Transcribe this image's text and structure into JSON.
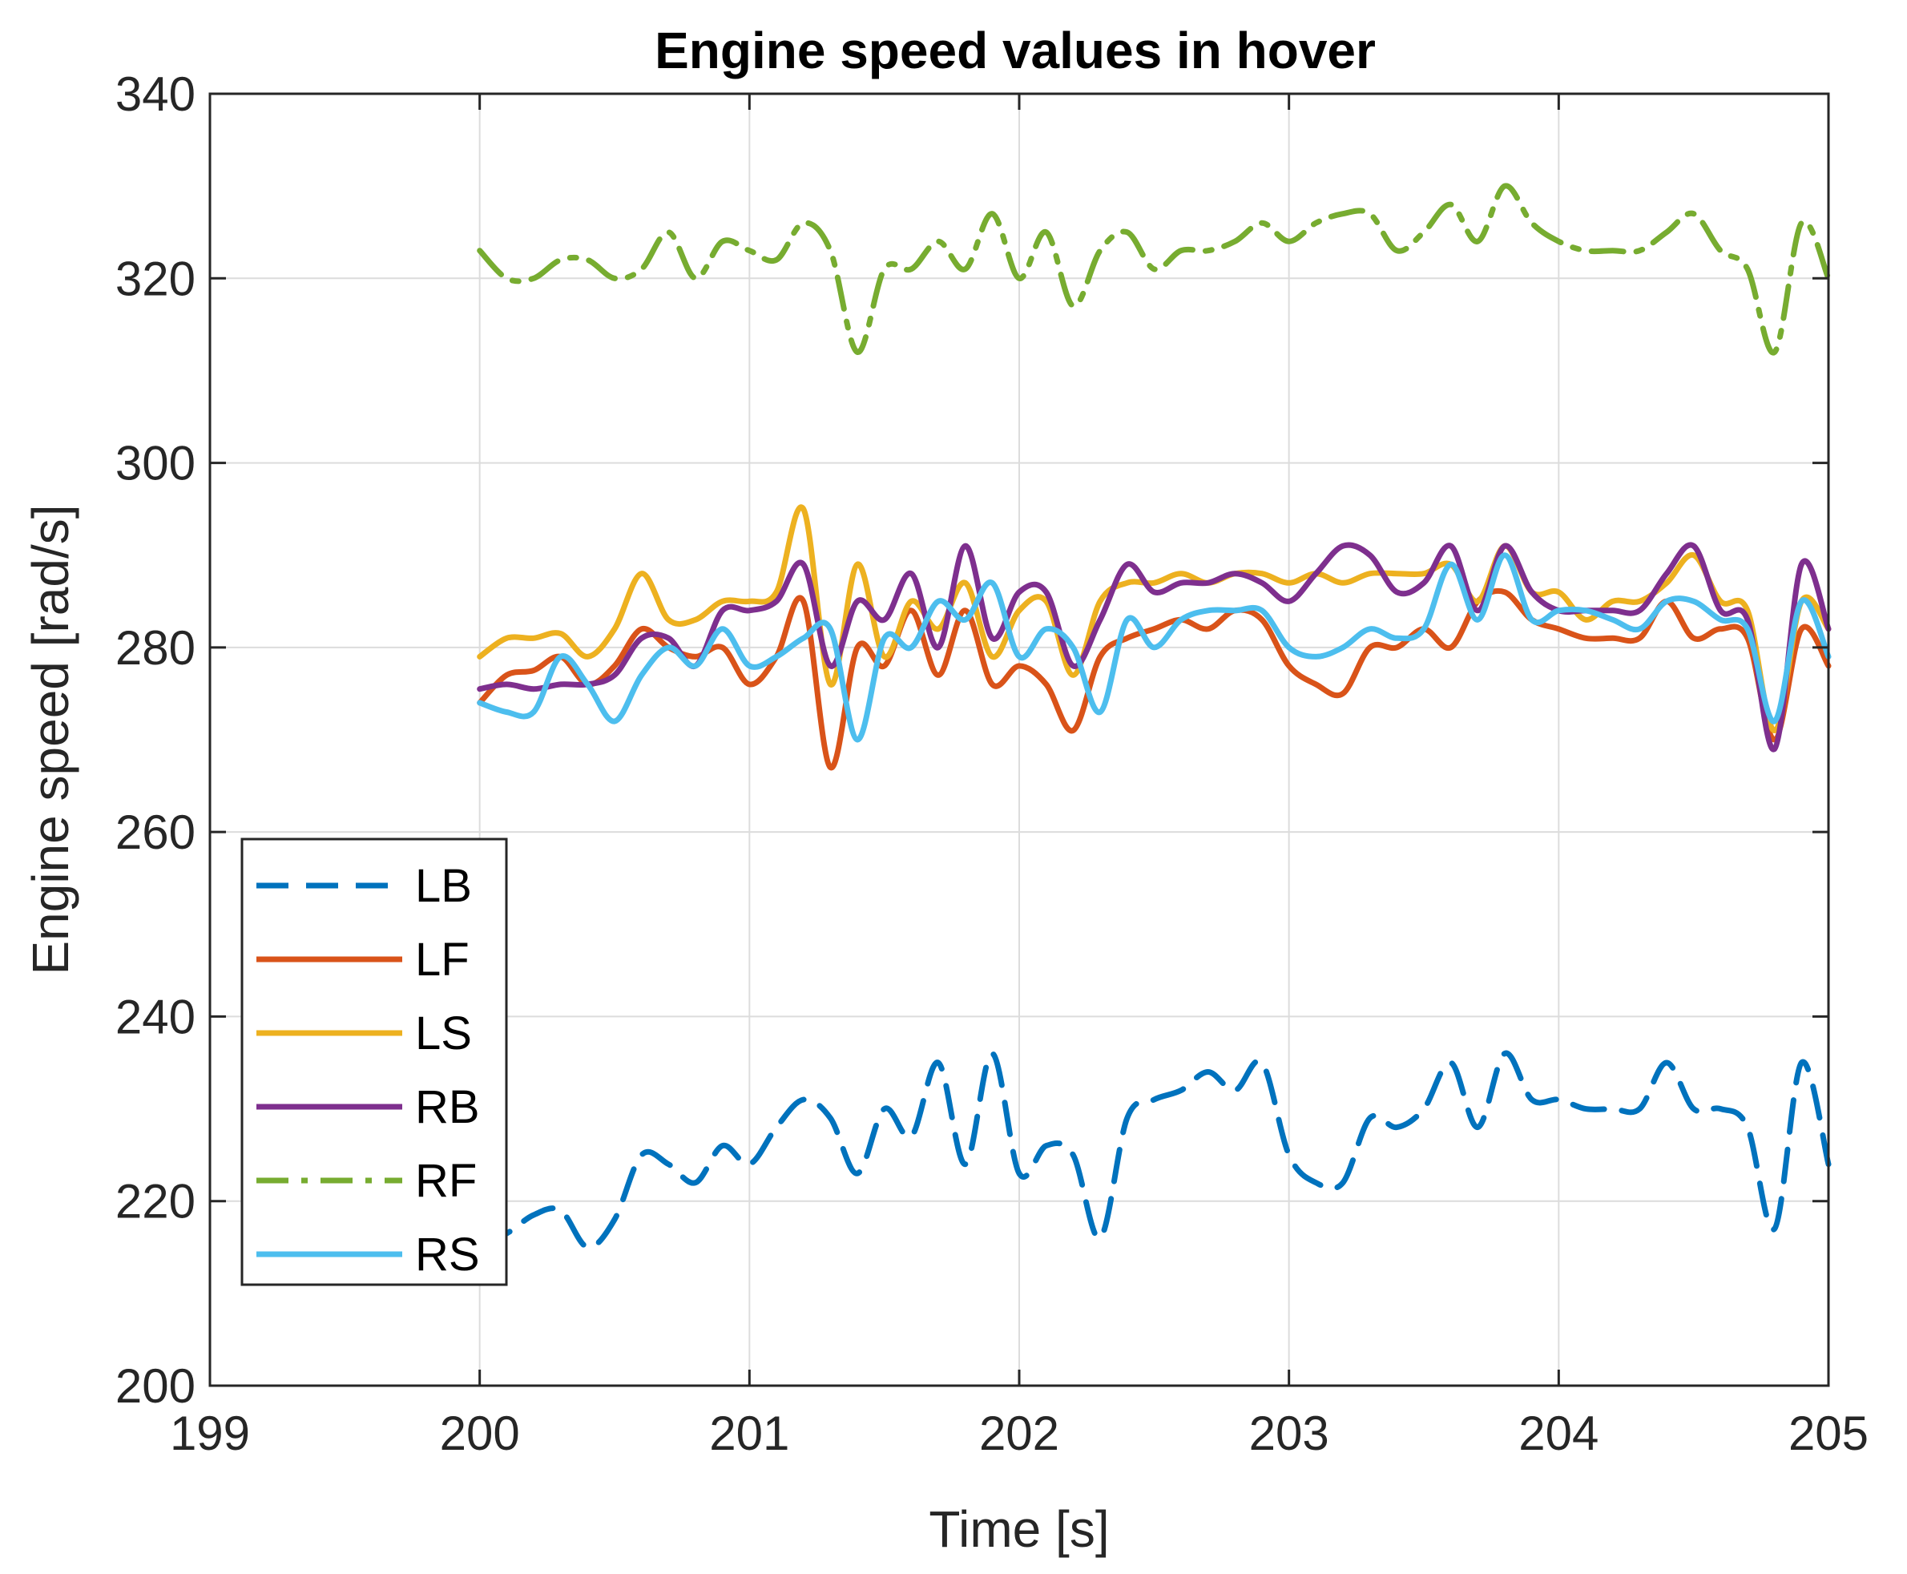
{
  "chart_data": {
    "type": "line",
    "title": "Engine speed values in hover",
    "xlabel": "Time [s]",
    "ylabel": "Engine speed [rad/s]",
    "xlim": [
      199,
      205
    ],
    "ylim": [
      200,
      340
    ],
    "xticks": [
      199,
      200,
      201,
      202,
      203,
      204,
      205
    ],
    "yticks": [
      200,
      220,
      240,
      260,
      280,
      300,
      320,
      340
    ],
    "grid": true,
    "legend_position": "lower-left",
    "x": [
      200.0,
      200.1,
      200.2,
      200.3,
      200.4,
      200.5,
      200.6,
      200.7,
      200.8,
      200.9,
      201.0,
      201.1,
      201.2,
      201.3,
      201.4,
      201.5,
      201.6,
      201.7,
      201.8,
      201.9,
      202.0,
      202.1,
      202.2,
      202.3,
      202.4,
      202.5,
      202.6,
      202.7,
      202.8,
      202.9,
      203.0,
      203.1,
      203.2,
      203.3,
      203.4,
      203.5,
      203.6,
      203.7,
      203.8,
      203.9,
      204.0,
      204.1,
      204.2,
      204.3,
      204.4,
      204.5,
      204.6,
      204.7,
      204.8,
      204.9,
      205.0
    ],
    "series": [
      {
        "name": "LB",
        "color": "#0072BD",
        "dash": "dashed",
        "values": [
          215.5,
          216.5,
          218.5,
          219,
          215,
          218,
          225,
          224,
          222,
          226,
          224,
          228,
          231,
          229,
          223,
          230,
          227,
          235,
          224,
          236,
          223,
          226,
          225,
          216,
          229,
          231,
          232,
          234,
          232,
          235,
          225,
          222,
          222,
          229,
          228,
          230,
          235,
          228,
          236,
          231,
          231,
          230,
          230,
          230,
          235,
          230,
          230,
          228,
          217,
          235,
          224
        ]
      },
      {
        "name": "LF",
        "color": "#D95319",
        "dash": "solid",
        "values": [
          274,
          277,
          277.5,
          279,
          276,
          278,
          282,
          280,
          279,
          280,
          276,
          279,
          285,
          267,
          280,
          278,
          284,
          277,
          284,
          276,
          278,
          276,
          271,
          279,
          281,
          282,
          283,
          282,
          284,
          283,
          278,
          276,
          275,
          280,
          280,
          282,
          280,
          285,
          286,
          283,
          282,
          281,
          281,
          281,
          285,
          281,
          282,
          281,
          270,
          282,
          278
        ]
      },
      {
        "name": "LS",
        "color": "#EDB120",
        "dash": "solid",
        "values": [
          279,
          281,
          281,
          281.5,
          279,
          282,
          288,
          283,
          283,
          285,
          285,
          286,
          295,
          276,
          289,
          279,
          285,
          282,
          287,
          279,
          284,
          285,
          277,
          285,
          287,
          287,
          288,
          287,
          288,
          288,
          287,
          288,
          287,
          288,
          288,
          288,
          289,
          285,
          291,
          286,
          286,
          283,
          285,
          285,
          287,
          290,
          285,
          284,
          271,
          285,
          282
        ]
      },
      {
        "name": "RB",
        "color": "#7E2F8E",
        "dash": "solid",
        "values": [
          275.5,
          276,
          275.5,
          276,
          276,
          277,
          281,
          281,
          278,
          284,
          284,
          285,
          289,
          278,
          285,
          283,
          288,
          280,
          291,
          281,
          286,
          286,
          278,
          283,
          289,
          286,
          287,
          287,
          288,
          287,
          285,
          288,
          291,
          290,
          286,
          287,
          291,
          284,
          291,
          286,
          284,
          284,
          284,
          284,
          288,
          291,
          284,
          283,
          269,
          289,
          282
        ]
      },
      {
        "name": "RF",
        "color": "#77AC30",
        "dash": "dashdot",
        "values": [
          323,
          320,
          320,
          322,
          322,
          320,
          321,
          325,
          320,
          324,
          323,
          322,
          326,
          323,
          312,
          321,
          321,
          324,
          321,
          327,
          320,
          325,
          317,
          323,
          325,
          321,
          323,
          323,
          324,
          326,
          324,
          326,
          327,
          327,
          323,
          325,
          328,
          324,
          330,
          326,
          324,
          323,
          323,
          323,
          325,
          327,
          323,
          321,
          312,
          326,
          320
        ]
      },
      {
        "name": "RS",
        "color": "#4DBEEE",
        "dash": "solid",
        "values": [
          274,
          273,
          273,
          279,
          276,
          272,
          277,
          280,
          278,
          282,
          278,
          279,
          281,
          282,
          270,
          281,
          280,
          285,
          283,
          287,
          279,
          282,
          280,
          273,
          283,
          280,
          283,
          284,
          284,
          284,
          280,
          279,
          280,
          282,
          281,
          282,
          289,
          283,
          290,
          283,
          284,
          284,
          283,
          282,
          285,
          285,
          283,
          282,
          272,
          285,
          279
        ]
      }
    ]
  }
}
